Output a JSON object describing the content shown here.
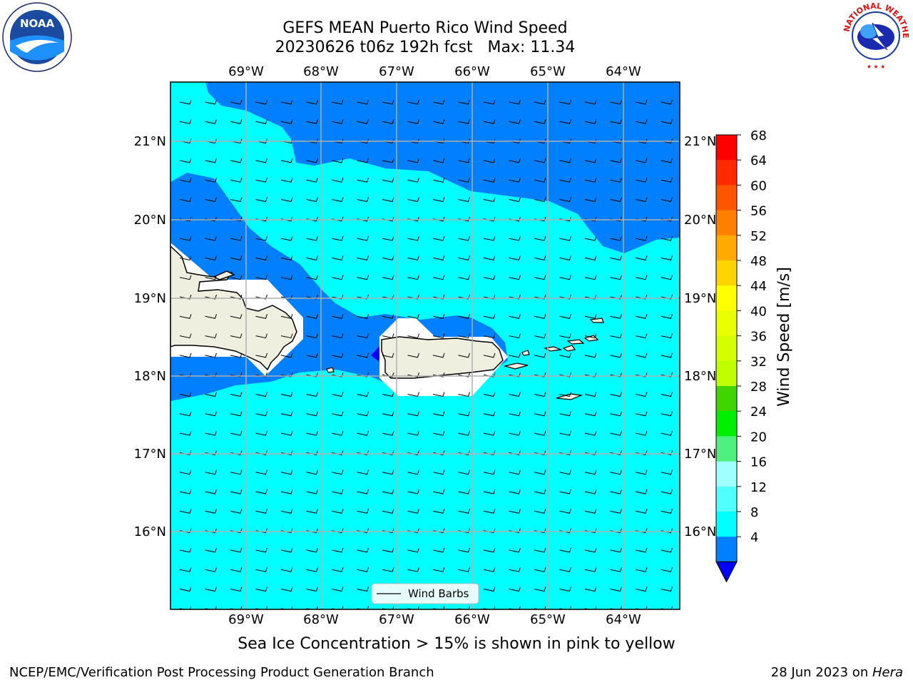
{
  "title": {
    "line1": "GEFS MEAN Puerto Rico Wind Speed",
    "line2": "20230626 t06z 192h fcst   Max: 11.34"
  },
  "map": {
    "lon_labels": [
      "69°W",
      "68°W",
      "67°W",
      "66°W",
      "65°W",
      "64°W"
    ],
    "lat_labels": [
      "21°N",
      "20°N",
      "19°N",
      "18°N",
      "17°N",
      "16°N"
    ],
    "legend_label": "Wind Barbs"
  },
  "colorbar": {
    "label": "Wind Speed [m/s]",
    "ticks": [
      "68",
      "64",
      "60",
      "56",
      "52",
      "48",
      "44",
      "40",
      "36",
      "32",
      "28",
      "24",
      "20",
      "16",
      "12",
      "8",
      "4"
    ],
    "colors": [
      "#ff0000",
      "#ff2a00",
      "#ff5500",
      "#ff8000",
      "#ffaa00",
      "#ffd400",
      "#ffff00",
      "#eaff00",
      "#d5ff00",
      "#bfff00",
      "#40d400",
      "#00f000",
      "#50f080",
      "#a0ffff",
      "#50ffff",
      "#00ffff",
      "#0080ff"
    ],
    "under_color": "#0000ff"
  },
  "colors": {
    "ocean_light": "#00ffff",
    "ocean_dark": "#0080ff",
    "land": "#efefdf",
    "masked": "#ffffff"
  },
  "note": "Sea Ice Concentration > 15% is shown in pink to yellow",
  "footer": {
    "left": "NCEP/EMC/Verification Post Processing Product Generation Branch",
    "date": "28 Jun 2023 on ",
    "machine": "Hera"
  },
  "logos": {
    "left": "NOAA",
    "right": "NATIONAL WEATHER SERVICE"
  }
}
